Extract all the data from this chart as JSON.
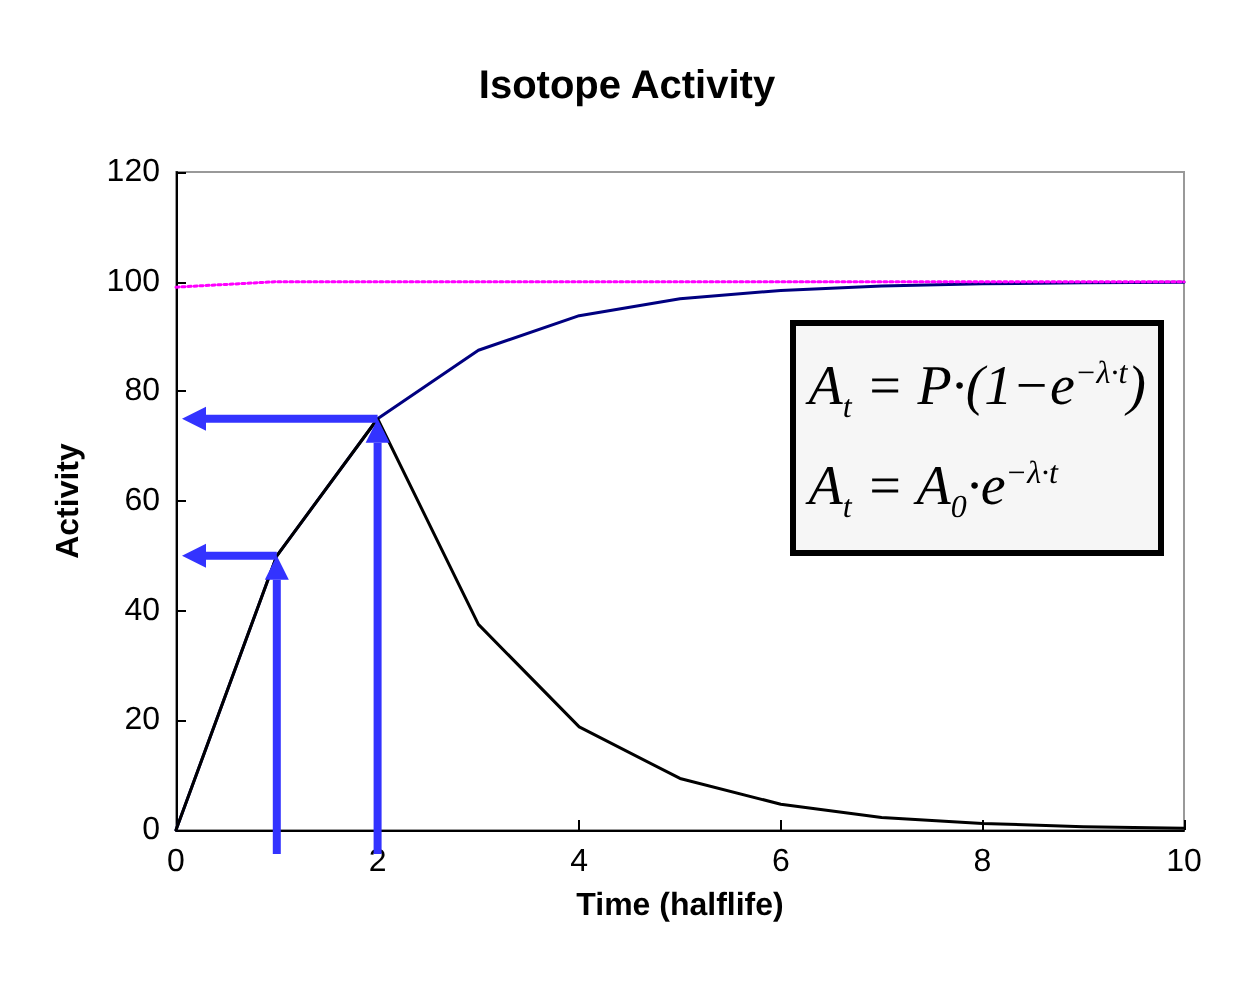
{
  "chart_data": {
    "type": "line",
    "title": "Isotope Activity",
    "xlabel": "Time (halflife)",
    "ylabel": "Activity",
    "x": [
      0,
      1,
      2,
      3,
      4,
      5,
      6,
      7,
      8,
      9,
      10
    ],
    "series": [
      {
        "color": "#000080",
        "values": [
          0,
          50,
          75,
          87.5,
          93.8,
          96.9,
          98.4,
          99.2,
          99.6,
          99.8,
          99.9
        ]
      },
      {
        "color": "#000000",
        "values": [
          0,
          50,
          75,
          37.5,
          18.8,
          9.4,
          4.7,
          2.3,
          1.2,
          0.6,
          0.3
        ]
      },
      {
        "color": "#ff00ff",
        "x": [
          0,
          1,
          10
        ],
        "values": [
          99,
          100,
          100
        ],
        "line_style": "dotted"
      }
    ],
    "xlim": [
      0,
      10
    ],
    "xticks": [
      0,
      2,
      4,
      6,
      8,
      10
    ],
    "ylim": [
      0,
      120
    ],
    "yticks": [
      0,
      20,
      40,
      60,
      80,
      100,
      120
    ],
    "marker": "none",
    "annotations": [
      "A$_{t}$ = P·(1−e$^{−λ·t}$)",
      "A$_{t}$ = A$_{0}$·e$^{−λ·t}$"
    ]
  }
}
